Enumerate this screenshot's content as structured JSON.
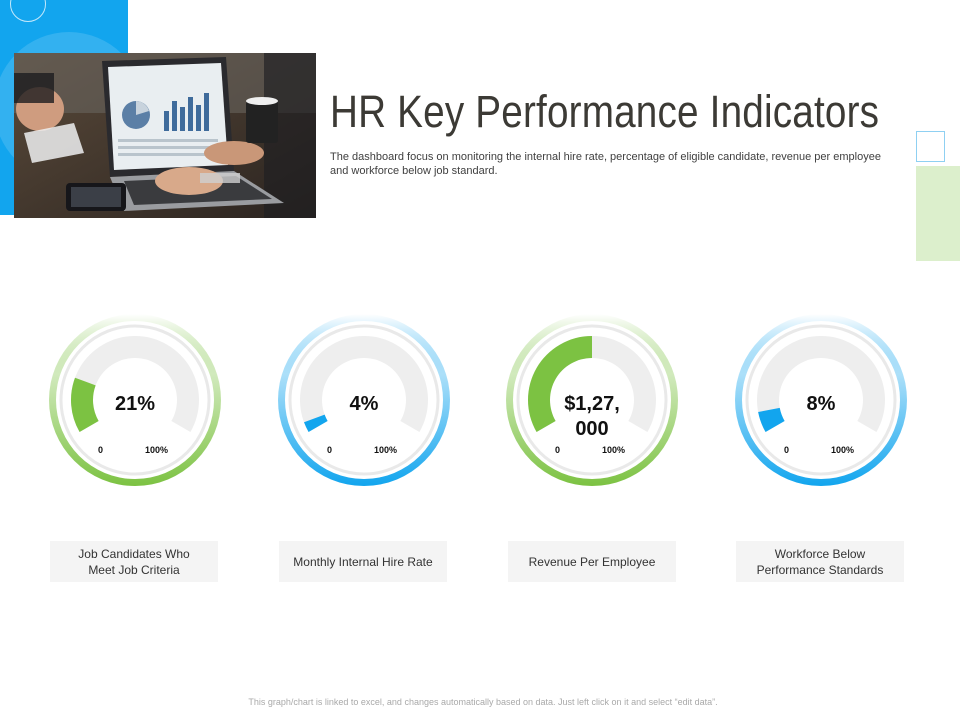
{
  "header": {
    "title": "HR Key Performance Indicators",
    "subtitle": "The dashboard focus on monitoring the internal hire rate, percentage of eligible candidate, revenue per employee and workforce below job standard."
  },
  "colors": {
    "accent_blue": "#12a5ee",
    "accent_green": "#7cc242",
    "track": "#eeeeee",
    "deco_green": "#dcefcc"
  },
  "chart_data": [
    {
      "type": "gauge",
      "title": "Job Candidates Who Meet Job Criteria",
      "value": 21,
      "value_label": "21%",
      "min_label": "0",
      "max_label": "100%",
      "range": [
        0,
        100
      ],
      "color": "#7cc242"
    },
    {
      "type": "gauge",
      "title": "Monthly Internal Hire Rate",
      "value": 4,
      "value_label": "4%",
      "min_label": "0",
      "max_label": "100%",
      "range": [
        0,
        100
      ],
      "color": "#12a5ee"
    },
    {
      "type": "gauge",
      "title": "Revenue Per Employee",
      "value": 50,
      "value_label": "$1,27, 000",
      "min_label": "0",
      "max_label": "100%",
      "range": [
        0,
        100
      ],
      "color": "#7cc242"
    },
    {
      "type": "gauge",
      "title": "Workforce Below Performance Standards",
      "value": 8,
      "value_label": "8%",
      "min_label": "0",
      "max_label": "100%",
      "range": [
        0,
        100
      ],
      "color": "#12a5ee"
    }
  ],
  "footer": {
    "note": "This graph/chart is linked to excel, and changes automatically based on data. Just left click on it and select “edit data”."
  }
}
